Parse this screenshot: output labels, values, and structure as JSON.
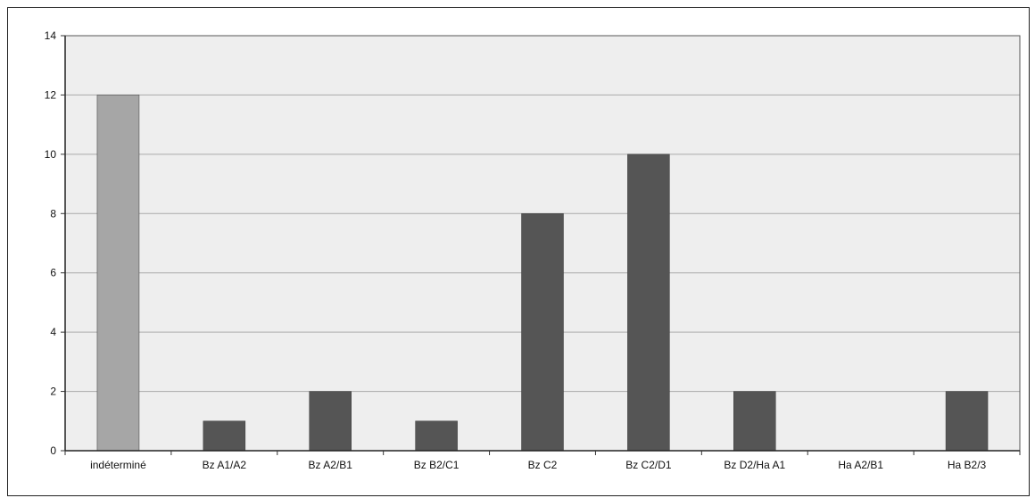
{
  "chart_data": {
    "type": "bar",
    "categories": [
      "indéterminé",
      "Bz A1/A2",
      "Bz A2/B1",
      "Bz B2/C1",
      "Bz C2",
      "Bz C2/D1",
      "Bz D2/Ha A1",
      "Ha A2/B1",
      "Ha B2/3"
    ],
    "values": [
      12,
      1,
      2,
      1,
      8,
      10,
      2,
      0,
      2
    ],
    "bar_colors": [
      "#a6a6a6",
      "#555555",
      "#555555",
      "#555555",
      "#555555",
      "#555555",
      "#555555",
      "#555555",
      "#555555"
    ],
    "ylim": [
      0,
      14
    ],
    "yticks": [
      0,
      2,
      4,
      6,
      8,
      10,
      12,
      14
    ],
    "title": "",
    "xlabel": "",
    "ylabel": "",
    "grid": true,
    "background": "#eeeeee",
    "grid_color": "#aaaaaa"
  }
}
